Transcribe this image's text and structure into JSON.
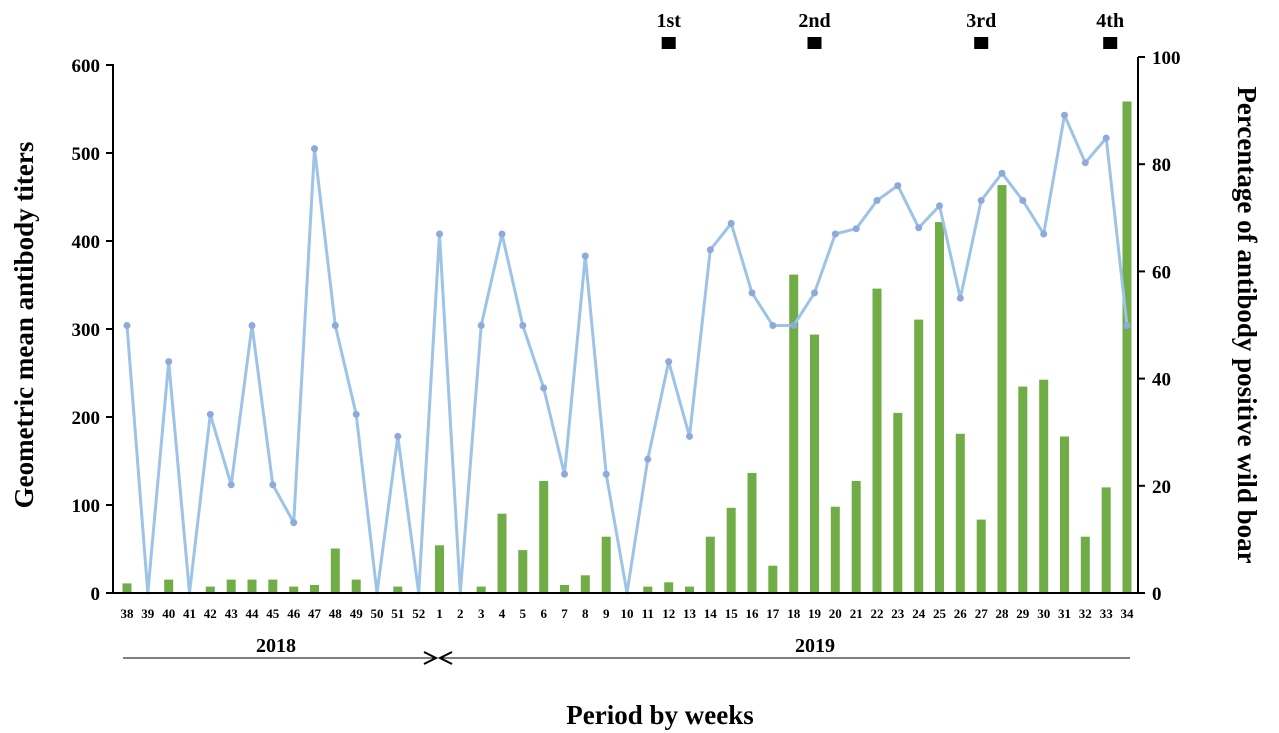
{
  "chart_data": {
    "type": "bar+line",
    "xlabel": "Period by weeks",
    "ylabel_left": "Geometric mean antibody titers",
    "ylabel_right": "Percentage of antibody positive wild boar",
    "ylim_left": [
      0,
      600
    ],
    "yticks_left": [
      "0",
      "100",
      "200",
      "300",
      "400",
      "500",
      "600"
    ],
    "ylim_right": [
      0,
      100
    ],
    "yticks_right": [
      "0",
      "20",
      "40",
      "60",
      "80",
      "100"
    ],
    "grid": false,
    "categories": [
      "38",
      "39",
      "40",
      "41",
      "42",
      "43",
      "44",
      "45",
      "46",
      "47",
      "48",
      "49",
      "50",
      "51",
      "52",
      "1",
      "2",
      "3",
      "4",
      "5",
      "6",
      "7",
      "8",
      "9",
      "10",
      "11",
      "12",
      "13",
      "14",
      "15",
      "16",
      "17",
      "18",
      "19",
      "20",
      "21",
      "22",
      "23",
      "24",
      "25",
      "26",
      "27",
      "28",
      "29",
      "30",
      "31",
      "32",
      "33",
      "34"
    ],
    "series": [
      {
        "type": "bar",
        "axis": "right",
        "color": "#70ad47",
        "values": [
          1.8,
          0,
          2.5,
          0,
          1.2,
          2.5,
          2.5,
          2.5,
          1.2,
          1.5,
          8.3,
          2.5,
          0,
          1.2,
          0,
          8.9,
          0,
          1.2,
          14.8,
          8,
          20.9,
          1.5,
          3.3,
          10.5,
          0,
          1.2,
          2,
          1.2,
          10.5,
          15.9,
          22.4,
          5.1,
          59.4,
          48.2,
          16.1,
          20.9,
          56.8,
          33.6,
          51,
          69.2,
          29.7,
          13.7,
          76.1,
          38.5,
          39.8,
          29.2,
          10.5,
          19.7,
          91.7
        ]
      },
      {
        "type": "line",
        "axis": "left",
        "color": "#9dc3e6",
        "values": [
          304,
          0,
          263,
          0,
          203,
          123,
          304,
          123,
          80,
          505,
          304,
          203,
          0,
          178,
          0,
          408,
          0,
          304,
          408,
          304,
          233,
          135,
          383,
          135,
          0,
          152,
          263,
          178,
          390,
          420,
          341,
          304,
          304,
          341,
          408,
          414,
          446,
          463,
          415,
          440,
          335,
          446,
          477,
          446,
          408,
          543,
          489,
          517,
          304
        ]
      }
    ],
    "year_labels": [
      "2018",
      "2019"
    ],
    "vaccinations": [
      {
        "label": "1st",
        "week": "12"
      },
      {
        "label": "2nd",
        "week": "19"
      },
      {
        "label": "3rd",
        "week": "27"
      },
      {
        "label": "4th",
        "week": "33"
      }
    ]
  }
}
